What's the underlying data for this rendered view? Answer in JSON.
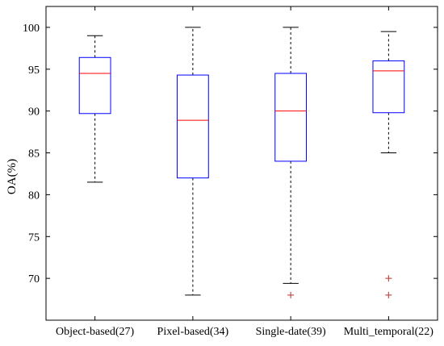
{
  "chart_data": {
    "type": "box",
    "title": "",
    "xlabel": "",
    "ylabel": "OA(%)",
    "ylim": [
      65,
      102.5
    ],
    "yticks": [
      70,
      75,
      80,
      85,
      90,
      95,
      100
    ],
    "grid": false,
    "categories": [
      "Object-based(27)",
      "Pixel-based(34)",
      "Single-date(39)",
      "Multi_temporal(22)"
    ],
    "boxes": [
      {
        "category": "Object-based(27)",
        "whisker_low": 81.5,
        "q1": 89.7,
        "median": 94.5,
        "q3": 96.4,
        "whisker_high": 99.0,
        "outliers": []
      },
      {
        "category": "Pixel-based(34)",
        "whisker_low": 68.0,
        "q1": 82.0,
        "median": 88.9,
        "q3": 94.3,
        "whisker_high": 100.0,
        "outliers": []
      },
      {
        "category": "Single-date(39)",
        "whisker_low": 69.4,
        "q1": 84.0,
        "median": 90.0,
        "q3": 94.5,
        "whisker_high": 100.0,
        "outliers": [
          68.0
        ]
      },
      {
        "category": "Multi_temporal(22)",
        "whisker_low": 85.0,
        "q1": 89.8,
        "median": 94.8,
        "q3": 96.0,
        "whisker_high": 99.5,
        "outliers": [
          70.0,
          68.0
        ]
      }
    ],
    "colors": {
      "box": "#0000ff",
      "median": "#ff0000",
      "whisker": "#000000",
      "outlier": "#c0504d",
      "axis": "#000000"
    }
  }
}
